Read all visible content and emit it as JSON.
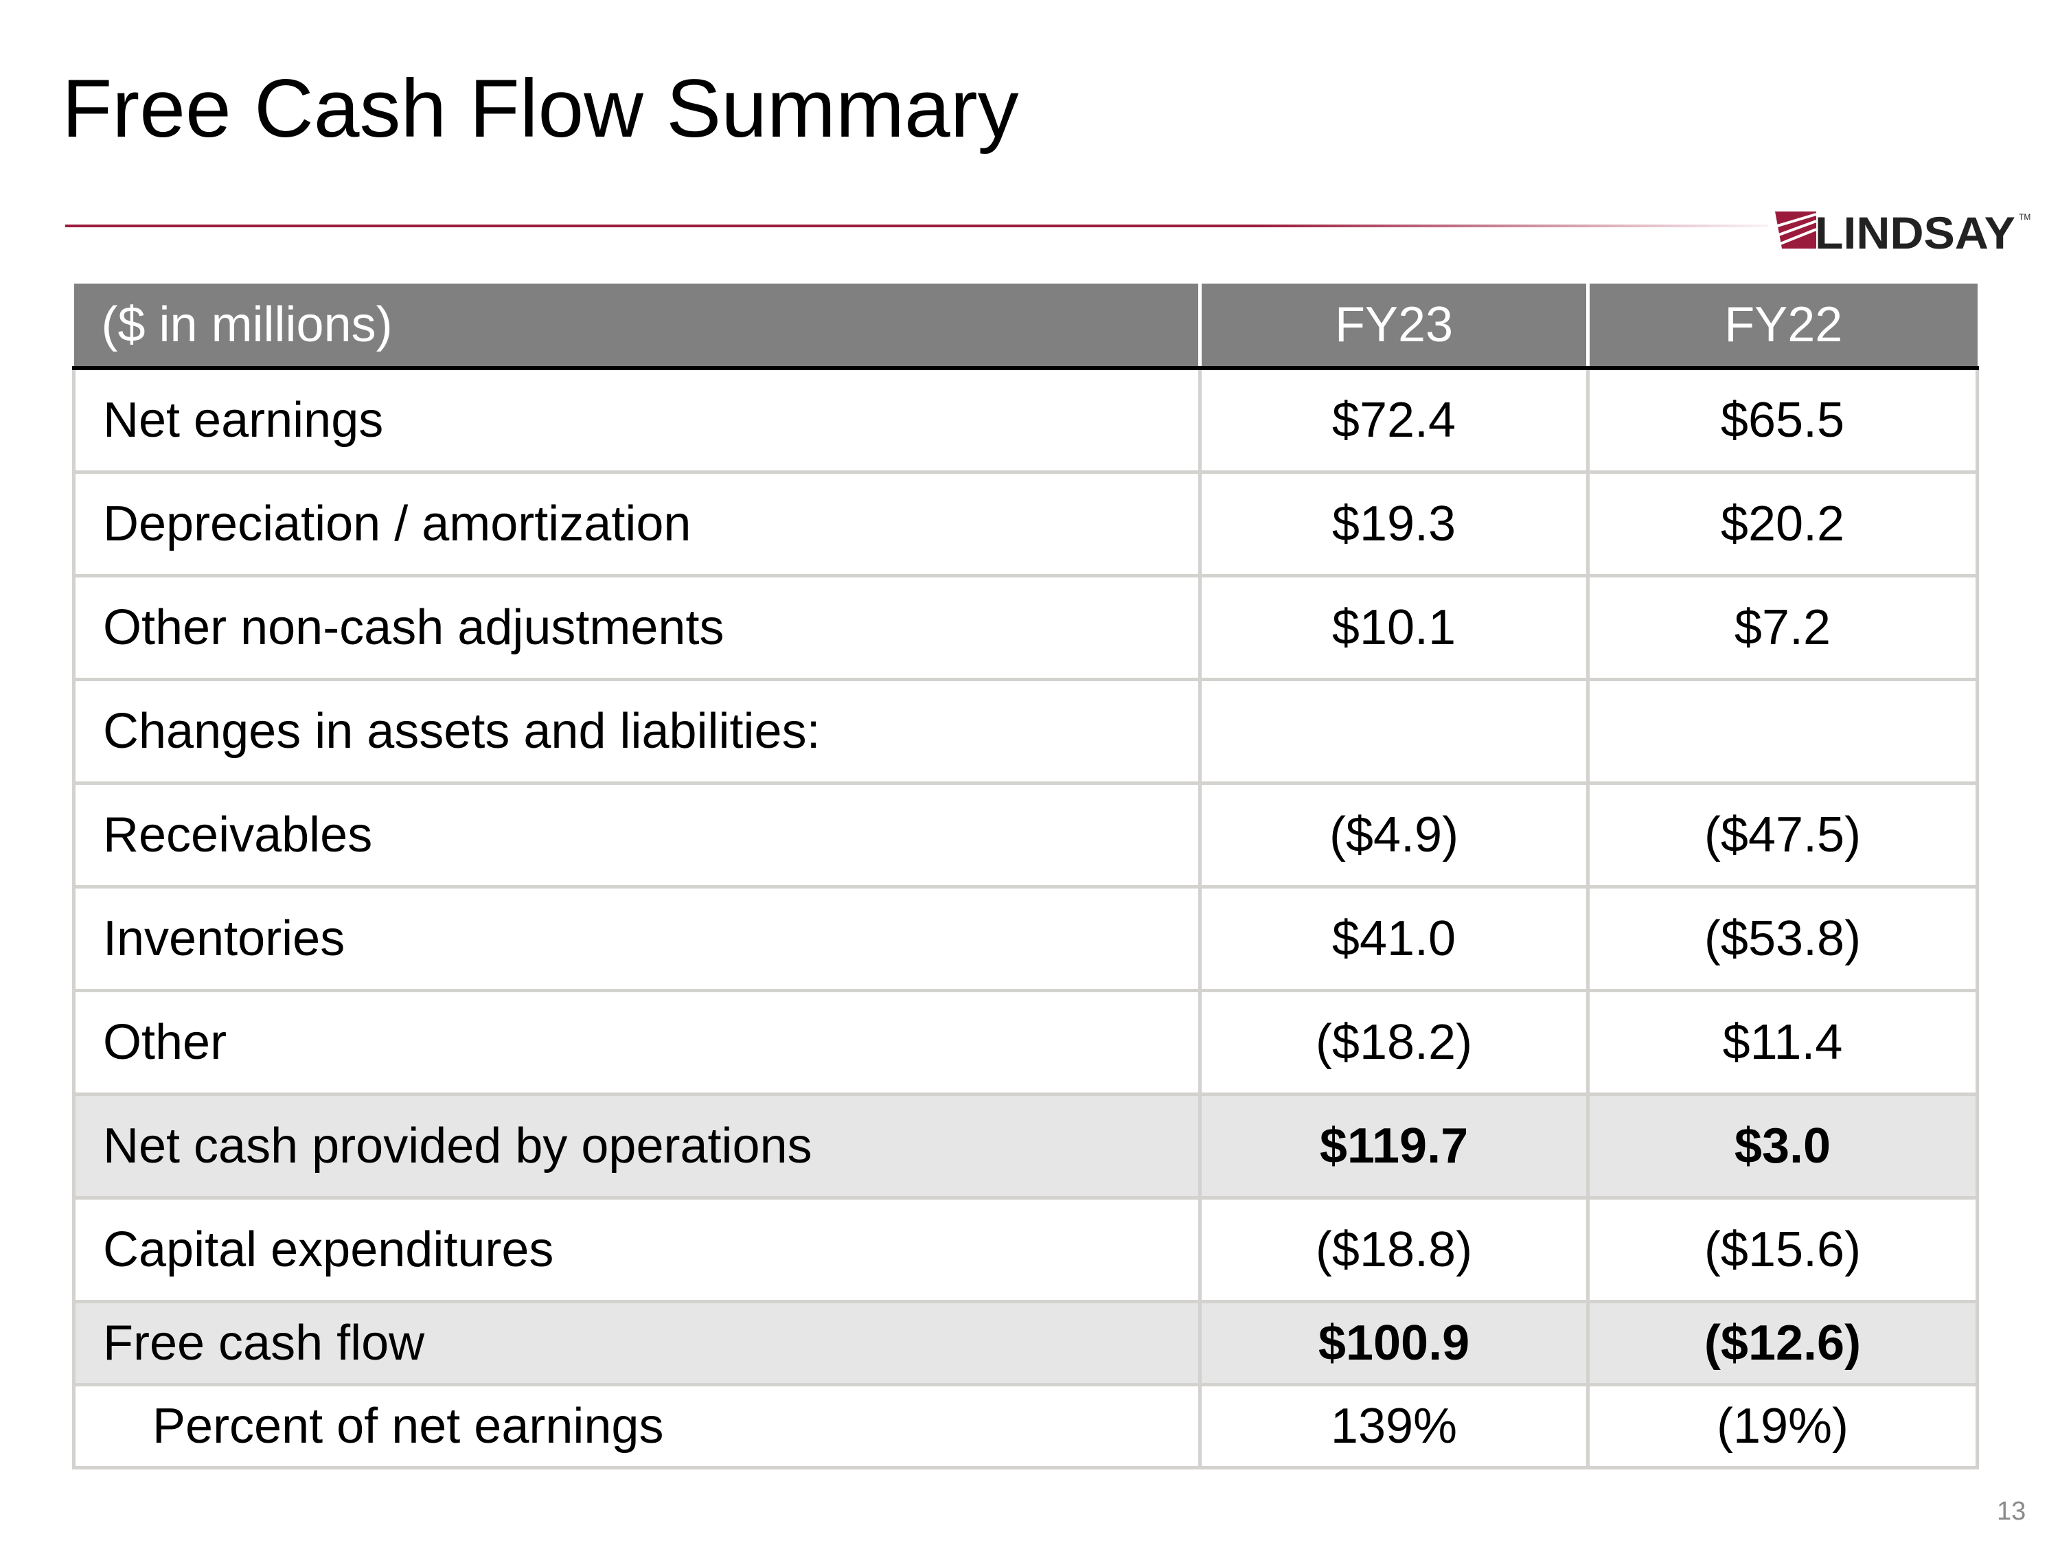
{
  "title": "Free Cash Flow Summary",
  "logo": {
    "text": "LINDSAY",
    "tm": "TM"
  },
  "colors": {
    "accent": "#9b1b3c",
    "header_bg": "#808080",
    "shade": "#e6e6e6"
  },
  "table": {
    "headers": [
      "($ in millions)",
      "FY23",
      "FY22"
    ],
    "rows": [
      {
        "label": "Net earnings",
        "fy23": "$72.4",
        "fy22": "$65.5"
      },
      {
        "label": "Depreciation / amortization",
        "fy23": "$19.3",
        "fy22": "$20.2"
      },
      {
        "label": "Other non-cash adjustments",
        "fy23": "$10.1",
        "fy22": "$7.2"
      },
      {
        "label": "Changes in assets and liabilities:",
        "fy23": "",
        "fy22": ""
      },
      {
        "label": "Receivables",
        "fy23": "($4.9)",
        "fy22": "($47.5)"
      },
      {
        "label": "Inventories",
        "fy23": "$41.0",
        "fy22": "($53.8)"
      },
      {
        "label": "Other",
        "fy23": "($18.2)",
        "fy22": "$11.4"
      },
      {
        "label": "Net cash provided by operations",
        "fy23": "$119.7",
        "fy22": "$3.0"
      },
      {
        "label": "Capital expenditures",
        "fy23": "($18.8)",
        "fy22": "($15.6)"
      },
      {
        "label": "Free cash flow",
        "fy23": "$100.9",
        "fy22": "($12.6)"
      },
      {
        "label": "Percent of net earnings",
        "fy23": "139%",
        "fy22": "(19%)"
      }
    ]
  },
  "page_number": "13"
}
